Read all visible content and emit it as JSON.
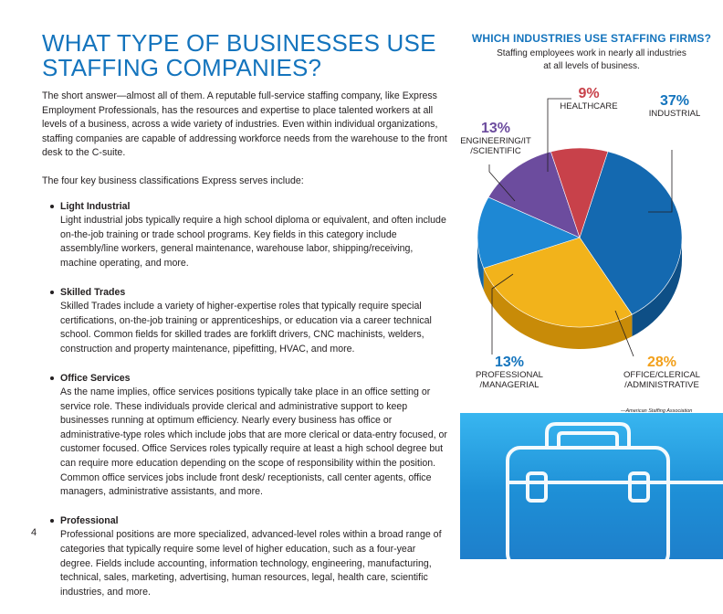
{
  "page": {
    "title_line1": "WHAT TYPE OF BUSINESSES USE",
    "title_line2": "STAFFING COMPANIES?",
    "intro": "The short answer—almost all of them. A reputable full-service staffing company, like Express Employment Professionals, has the resources and expertise to place talented workers at all levels of a business, across a wide variety of industries. Even within individual organizations, staffing companies are capable of addressing workforce needs from the warehouse to the front desk to the C-suite.",
    "lead": "The four key business classifications Express serves include:",
    "classifications": [
      {
        "name": "Light Industrial",
        "text": "Light industrial jobs typically require a high school diploma or equivalent, and often include on-the-job training or trade school programs. Key fields in this category include assembly/line workers, general maintenance, warehouse labor, shipping/receiving, machine operating, and more."
      },
      {
        "name": "Skilled Trades",
        "text": "Skilled Trades include a variety of higher-expertise roles that typically require special certifications, on-the-job training or apprenticeships, or education via a career technical school. Common fields for skilled trades are forklift drivers, CNC machinists, welders, construction and property maintenance, pipefitting, HVAC, and more."
      },
      {
        "name": "Office Services",
        "text": "As the name implies, office services positions typically take place in an office setting or service role. These individuals provide clerical and administrative support to keep businesses running at optimum efficiency. Nearly every business has office or administrative-type roles which include jobs that are more clerical or data-entry focused, or customer focused. Office Services roles typically require at least a high school degree but can require more education depending on the scope of responsibility within the position. Common office services jobs include front desk/ receptionists, call center agents, office managers, administrative assistants, and more."
      },
      {
        "name": "Professional",
        "text": "Professional positions are more specialized, advanced-level roles within a broad range of categories that typically require some level of higher education, such as a four-year degree. Fields include accounting, information technology, engineering, manufacturing, technical, sales, marketing, advertising, human resources, legal, health care, scientific industries, and more."
      }
    ],
    "page_number": "4"
  },
  "sidebar": {
    "source": "—American Staffing Association",
    "briefcase_icon": "briefcase-icon"
  },
  "chart_data": {
    "type": "pie",
    "title": "WHICH INDUSTRIES USE STAFFING FIRMS?",
    "subtitle_line1": "Staffing employees work in nearly all industries",
    "subtitle_line2": "at all levels of business.",
    "slices": [
      {
        "pct_label": "37%",
        "value": 37,
        "label_line1": "INDUSTRIAL",
        "label_line2": "",
        "color": "#1469b0",
        "side": "#0e4f86",
        "pct_color": "#1474bd"
      },
      {
        "pct_label": "28%",
        "value": 28,
        "label_line1": "OFFICE/CLERICAL",
        "label_line2": "/ADMINISTRATIVE",
        "color": "#f2b31b",
        "side": "#c88b08",
        "pct_color": "#f2a01b"
      },
      {
        "pct_label": "13%",
        "value": 13,
        "label_line1": "PROFESSIONAL",
        "label_line2": "/MANAGERIAL",
        "color": "#1e88d4",
        "side": "#1266a8",
        "pct_color": "#1474bd"
      },
      {
        "pct_label": "13%",
        "value": 13,
        "label_line1": "ENGINEERING/IT",
        "label_line2": "/SCIENTIFIC",
        "color": "#6c4c9e",
        "side": "#4e3576",
        "pct_color": "#6c4c9e"
      },
      {
        "pct_label": "9%",
        "value": 9,
        "label_line1": "HEALTHCARE",
        "label_line2": "",
        "color": "#c8414a",
        "side": "#962e35",
        "pct_color": "#c8414a"
      }
    ]
  }
}
